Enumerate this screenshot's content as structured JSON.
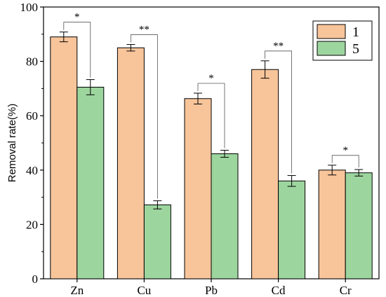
{
  "chart_data": {
    "type": "bar",
    "title": "",
    "xlabel": "",
    "ylabel": "Removal rate(%)",
    "ylim": [
      0,
      100
    ],
    "yticks": [
      0,
      20,
      40,
      60,
      80,
      100
    ],
    "categories": [
      "Zn",
      "Cu",
      "Pb",
      "Cd",
      "Cr"
    ],
    "series": [
      {
        "name": "1",
        "color": "#F8C49A",
        "values": [
          89,
          85,
          66.3,
          77,
          40
        ],
        "errors": [
          1.8,
          1.2,
          2,
          3.2,
          1.8
        ]
      },
      {
        "name": "5",
        "color": "#9DD59E",
        "values": [
          70.5,
          27.2,
          46,
          36,
          39
        ],
        "errors": [
          2.8,
          1.5,
          1.3,
          2,
          1.2
        ]
      }
    ],
    "significance": [
      "*",
      "**",
      "*",
      "**",
      "*"
    ],
    "legend_position": "top-right",
    "grid": false
  }
}
